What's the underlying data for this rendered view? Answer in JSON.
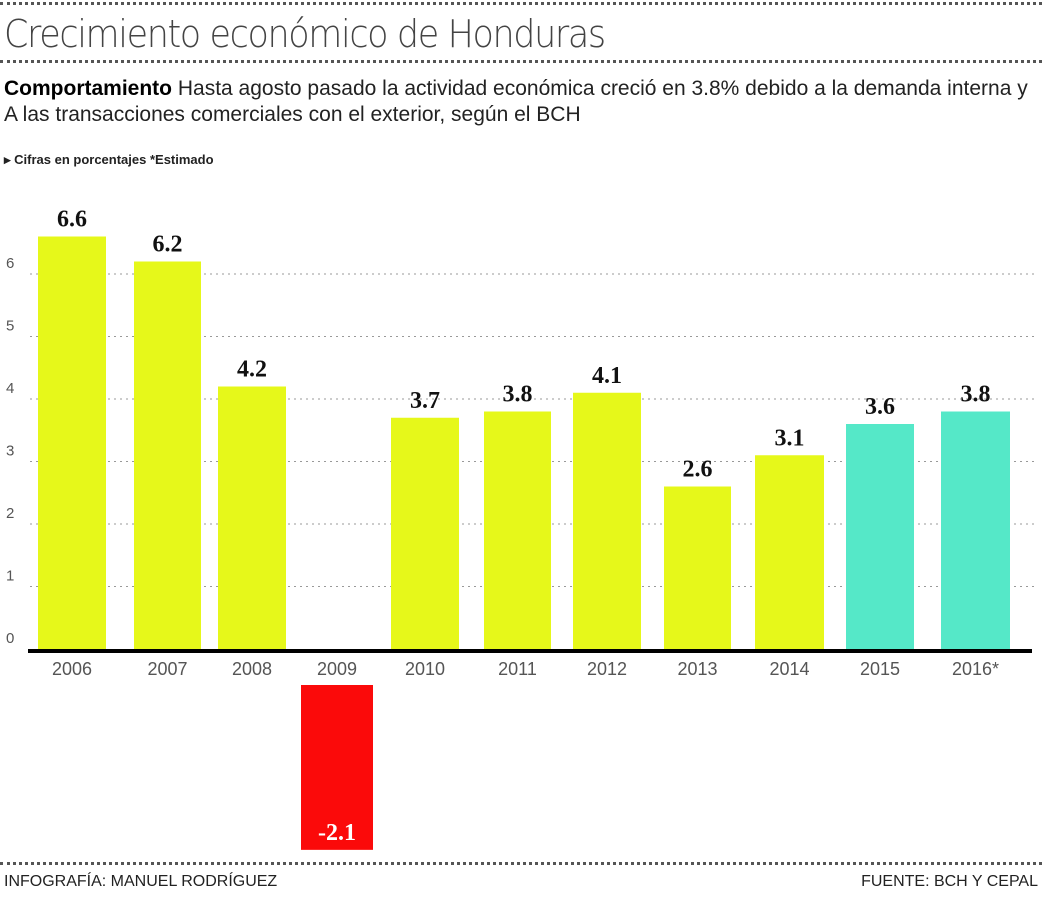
{
  "header": {
    "title": "Crecimiento económico de Honduras",
    "subtitle_bold": "Comportamiento",
    "subtitle": "Hasta agosto pasado la actividad económica creció en 3.8% debido a la demanda interna y A las  transacciones  comerciales  con  el  exterior, según el BCH",
    "note": "▸ Cifras en porcentajes *Estimado"
  },
  "footer": {
    "credit": "INFOGRAFÍA: MANUEL RODRÍGUEZ",
    "source": "FUENTE: BCH Y CEPAL"
  },
  "chart_data": {
    "type": "bar",
    "title": "Crecimiento económico de Honduras",
    "categories": [
      "2006",
      "2007",
      "2008",
      "2009",
      "2010",
      "2011",
      "2012",
      "2013",
      "2014",
      "2015",
      "2016*"
    ],
    "values": [
      6.6,
      6.2,
      4.2,
      -2.1,
      3.7,
      3.8,
      4.1,
      2.6,
      3.1,
      3.6,
      3.8
    ],
    "data_labels": [
      "6.6",
      "6.2",
      "4.2",
      "-2.1",
      "3.7",
      "3.8",
      "4.1",
      "2.6",
      "3.1",
      "3.6",
      "3.8"
    ],
    "colors": [
      "#e6f81a",
      "#e6f81a",
      "#e6f81a",
      "#fb0a0a",
      "#e6f81a",
      "#e6f81a",
      "#e6f81a",
      "#e6f81a",
      "#e6f81a",
      "#55e8c8",
      "#55e8c8"
    ],
    "yticks": [
      "0",
      "1",
      "2",
      "3",
      "4",
      "5",
      "6"
    ],
    "ylim": [
      0,
      7
    ],
    "grid": true,
    "xlabel": "",
    "ylabel": ""
  }
}
